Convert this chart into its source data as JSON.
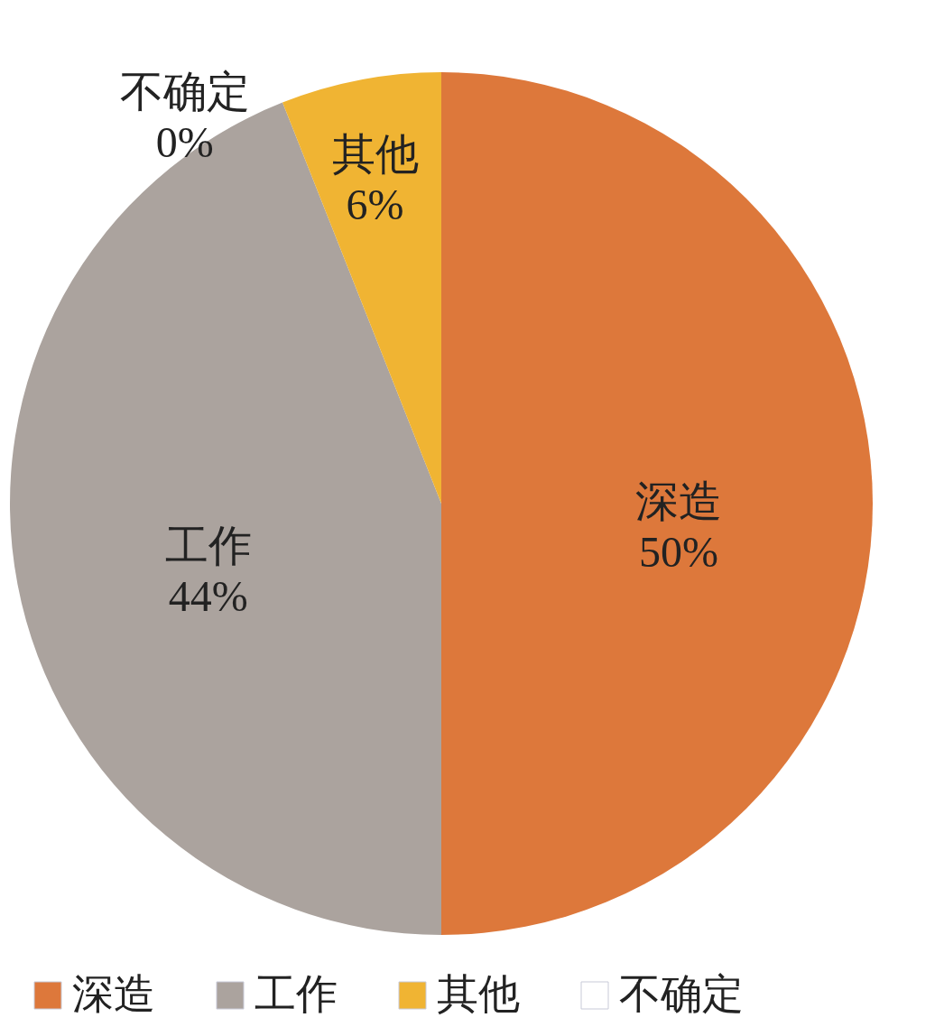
{
  "chart_data": {
    "type": "pie",
    "categories": [
      "深造",
      "工作",
      "其他",
      "不确定"
    ],
    "values": [
      50,
      44,
      6,
      0
    ],
    "colors": [
      "#dd783b",
      "#aba39e",
      "#f0b433",
      "#ffffff"
    ],
    "value_labels": [
      "50%",
      "44%",
      "6%",
      "0%"
    ],
    "legend": "bottom"
  }
}
